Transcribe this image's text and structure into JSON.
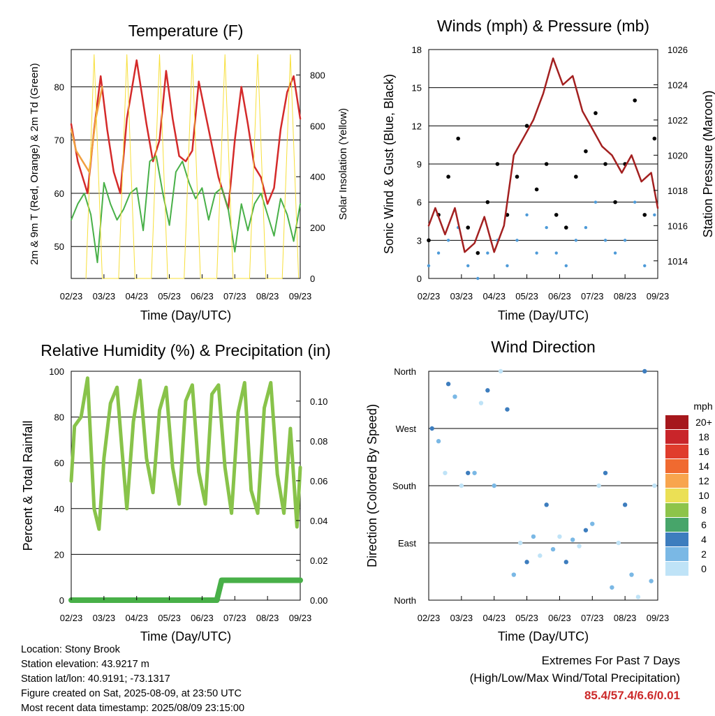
{
  "x_ticks": [
    "02/23",
    "03/23",
    "04/23",
    "05/23",
    "06/23",
    "07/23",
    "08/23",
    "09/23"
  ],
  "x_axis_label": "Time (Day/UTC)",
  "chart_data": [
    {
      "id": "temperature",
      "type": "line",
      "title": "Temperature (F)",
      "ylabel": "2m & 9m T (Red, Orange) & 2m Td (Green)",
      "ylabel_right": "Solar Insolation (Yellow)",
      "ylim": [
        44,
        87
      ],
      "yticks": [
        50,
        60,
        70,
        80
      ],
      "ylim_right": [
        0,
        900
      ],
      "yticks_right": [
        0,
        200,
        400,
        600,
        800
      ],
      "x_label": "Time (Day/UTC)",
      "series": [
        {
          "color": "#d42a2a",
          "axis": "left",
          "x": [
            0,
            0.2,
            0.5,
            0.7,
            0.9,
            1.1,
            1.3,
            1.5,
            1.7,
            2.0,
            2.3,
            2.5,
            2.7,
            2.9,
            3.1,
            3.3,
            3.5,
            3.7,
            3.9,
            4.2,
            4.5,
            4.8,
            5.0,
            5.2,
            5.4,
            5.6,
            5.8,
            6.0,
            6.2,
            6.4,
            6.6,
            6.8,
            7.0
          ],
          "values": [
            73,
            66,
            60,
            72,
            82,
            72,
            64,
            60,
            74,
            85,
            73,
            66,
            70,
            83,
            74,
            67,
            66,
            68,
            81,
            72,
            63,
            57,
            70,
            80,
            73,
            65,
            63,
            58,
            61,
            72,
            79,
            82,
            74
          ]
        },
        {
          "color": "#f0a040",
          "axis": "left",
          "x": [
            0,
            0.15,
            0.35,
            0.55,
            0.75,
            0.95
          ],
          "values": [
            72,
            68,
            66,
            64,
            74,
            80
          ]
        },
        {
          "color": "#48b048",
          "axis": "left",
          "x": [
            0,
            0.2,
            0.4,
            0.6,
            0.8,
            1.0,
            1.2,
            1.4,
            1.6,
            1.8,
            2.0,
            2.2,
            2.4,
            2.6,
            2.8,
            3.0,
            3.2,
            3.4,
            3.6,
            3.8,
            4.0,
            4.2,
            4.4,
            4.6,
            4.8,
            5.0,
            5.2,
            5.4,
            5.6,
            5.8,
            6.0,
            6.2,
            6.4,
            6.6,
            6.8,
            7.0
          ],
          "values": [
            55,
            58,
            60,
            56,
            47,
            62,
            58,
            55,
            57,
            60,
            61,
            53,
            66,
            67,
            60,
            54,
            64,
            66,
            62,
            59,
            61,
            55,
            60,
            61,
            57,
            49,
            58,
            53,
            58,
            60,
            56,
            52,
            59,
            56,
            51,
            58
          ]
        },
        {
          "color": "#f7df3a",
          "axis": "right",
          "x": [
            0.45,
            0.7,
            0.95,
            1.45,
            1.7,
            1.95,
            2.45,
            2.7,
            2.95,
            3.45,
            3.7,
            3.95,
            4.45,
            4.7,
            4.95,
            5.45,
            5.7,
            5.95,
            6.45,
            6.7,
            6.95
          ],
          "values": [
            0,
            880,
            0,
            0,
            880,
            0,
            0,
            880,
            0,
            0,
            880,
            0,
            0,
            880,
            0,
            0,
            880,
            0,
            0,
            880,
            0
          ]
        }
      ]
    },
    {
      "id": "winds",
      "type": "scatter",
      "title": "Winds (mph) & Pressure (mb)",
      "ylabel": "Sonic Wind & Gust (Blue, Black)",
      "ylabel_right": "Station Pressure (Maroon)",
      "ylim": [
        0,
        18
      ],
      "yticks": [
        0,
        3,
        6,
        9,
        12,
        15,
        18
      ],
      "ylim_right": [
        1013,
        1026
      ],
      "yticks_right": [
        1014,
        1016,
        1018,
        1020,
        1022,
        1024,
        1026
      ],
      "x_label": "Time (Day/UTC)",
      "series": [
        {
          "color": "#000000",
          "axis": "left",
          "x": [
            0,
            0.3,
            0.6,
            0.9,
            1.2,
            1.5,
            1.8,
            2.1,
            2.4,
            2.7,
            3.0,
            3.3,
            3.6,
            3.9,
            4.2,
            4.5,
            4.8,
            5.1,
            5.4,
            5.7,
            6.0,
            6.3,
            6.6,
            6.9
          ],
          "values": [
            3,
            5,
            8,
            11,
            4,
            2,
            6,
            9,
            5,
            8,
            12,
            7,
            9,
            5,
            4,
            8,
            10,
            13,
            9,
            6,
            9,
            14,
            5,
            11
          ]
        },
        {
          "color": "#4d9ad8",
          "axis": "left",
          "x": [
            0,
            0.3,
            0.6,
            0.9,
            1.2,
            1.5,
            1.8,
            2.1,
            2.4,
            2.7,
            3.0,
            3.3,
            3.6,
            3.9,
            4.2,
            4.5,
            4.8,
            5.1,
            5.4,
            5.7,
            6.0,
            6.3,
            6.6,
            6.9
          ],
          "values": [
            1,
            2,
            3,
            4,
            1,
            0,
            2,
            3,
            1,
            3,
            5,
            2,
            4,
            2,
            1,
            3,
            4,
            6,
            3,
            2,
            3,
            6,
            1,
            5
          ]
        },
        {
          "color": "#a32020",
          "axis": "right",
          "x": [
            0,
            0.2,
            0.5,
            0.8,
            1.1,
            1.4,
            1.7,
            2.0,
            2.3,
            2.6,
            2.9,
            3.2,
            3.5,
            3.8,
            4.1,
            4.4,
            4.7,
            5.0,
            5.3,
            5.6,
            5.9,
            6.2,
            6.5,
            6.8,
            7.0
          ],
          "values": [
            1016,
            1017,
            1015.5,
            1017,
            1014.5,
            1015,
            1016.5,
            1014.5,
            1016,
            1020,
            1021,
            1022,
            1023.5,
            1025.5,
            1024,
            1024.5,
            1022.5,
            1021.5,
            1020.5,
            1020,
            1019,
            1020,
            1018.5,
            1019,
            1017
          ]
        }
      ]
    },
    {
      "id": "humidity",
      "type": "line",
      "title": "Relative Humidity (%) & Precipitation (in)",
      "ylabel": "Percent & Total Rainfall",
      "ylim": [
        0,
        100
      ],
      "yticks": [
        0,
        20,
        40,
        60,
        80,
        100
      ],
      "ylim_right": [
        0,
        0.115
      ],
      "yticks_right": [
        "0.00",
        "0.02",
        "0.04",
        "0.06",
        "0.08",
        "0.10"
      ],
      "x_label": "Time (Day/UTC)",
      "series": [
        {
          "color": "#88c34a",
          "axis": "left",
          "x": [
            0,
            0.1,
            0.3,
            0.5,
            0.7,
            0.85,
            1.0,
            1.2,
            1.4,
            1.55,
            1.7,
            1.9,
            2.1,
            2.3,
            2.5,
            2.7,
            2.9,
            3.1,
            3.3,
            3.5,
            3.7,
            3.9,
            4.1,
            4.3,
            4.5,
            4.7,
            4.9,
            5.1,
            5.3,
            5.5,
            5.7,
            5.9,
            6.1,
            6.3,
            6.5,
            6.7,
            6.9,
            7.0
          ],
          "values": [
            52,
            76,
            80,
            97,
            40,
            31,
            62,
            86,
            93,
            66,
            40,
            78,
            96,
            62,
            47,
            83,
            93,
            58,
            42,
            87,
            94,
            56,
            42,
            90,
            94,
            58,
            38,
            82,
            95,
            48,
            38,
            84,
            95,
            55,
            38,
            75,
            32,
            58
          ]
        },
        {
          "color": "#48b048",
          "axis": "right",
          "x": [
            0,
            4.45,
            4.6,
            7.0
          ],
          "values": [
            0,
            0,
            0.01,
            0.01
          ]
        }
      ]
    },
    {
      "id": "direction",
      "type": "scatter",
      "title": "Wind Direction",
      "ylabel": "Direction (Colored By Speed)",
      "yticks": [
        "North",
        "East",
        "South",
        "West",
        "North"
      ],
      "x_label": "Time (Day/UTC)",
      "legend_title": "mph",
      "legend": [
        {
          "label": "20+",
          "color": "#a6171c"
        },
        {
          "label": "18",
          "color": "#c9252a"
        },
        {
          "label": "16",
          "color": "#e03c2c"
        },
        {
          "label": "14",
          "color": "#f06a30"
        },
        {
          "label": "12",
          "color": "#f8a54d"
        },
        {
          "label": "10",
          "color": "#ebe055"
        },
        {
          "label": "8",
          "color": "#8dc44a"
        },
        {
          "label": "6",
          "color": "#47a56a"
        },
        {
          "label": "4",
          "color": "#3d7dbe"
        },
        {
          "label": "2",
          "color": "#7ab8e5"
        },
        {
          "label": "0",
          "color": "#bfe3f7"
        }
      ],
      "series": [
        {
          "x": [
            0.1,
            0.3,
            0.5,
            0.6,
            0.8,
            1.0,
            1.2,
            1.4,
            1.6,
            1.8,
            2.0,
            2.2,
            2.4,
            2.6,
            2.8,
            3.0,
            3.2,
            3.4,
            3.6,
            3.8,
            4.0,
            4.2,
            4.4,
            4.6,
            4.8,
            5.0,
            5.2,
            5.4,
            5.6,
            5.8,
            6.0,
            6.2,
            6.4,
            6.6,
            6.8,
            6.9
          ],
          "values": [
            270,
            250,
            200,
            340,
            320,
            180,
            200,
            200,
            310,
            330,
            180,
            360,
            300,
            40,
            90,
            60,
            100,
            70,
            150,
            80,
            100,
            60,
            95,
            85,
            110,
            120,
            180,
            200,
            20,
            90,
            150,
            40,
            5,
            360,
            30,
            180
          ]
        }
      ]
    }
  ],
  "footer_left": [
    "Location: Stony Brook",
    "Station elevation: 43.9217 m",
    "Station lat/lon: 40.9191; -73.1317",
    "Figure created on Sat, 2025-08-09, at 23:50 UTC",
    "Most recent data timestamp: 2025/08/09 23:15:00"
  ],
  "footer_right": {
    "line1": "Extremes For Past 7 Days",
    "line2": "(High/Low/Max Wind/Total Precipitation)",
    "values": "85.4/57.4/6.6/0.01"
  }
}
